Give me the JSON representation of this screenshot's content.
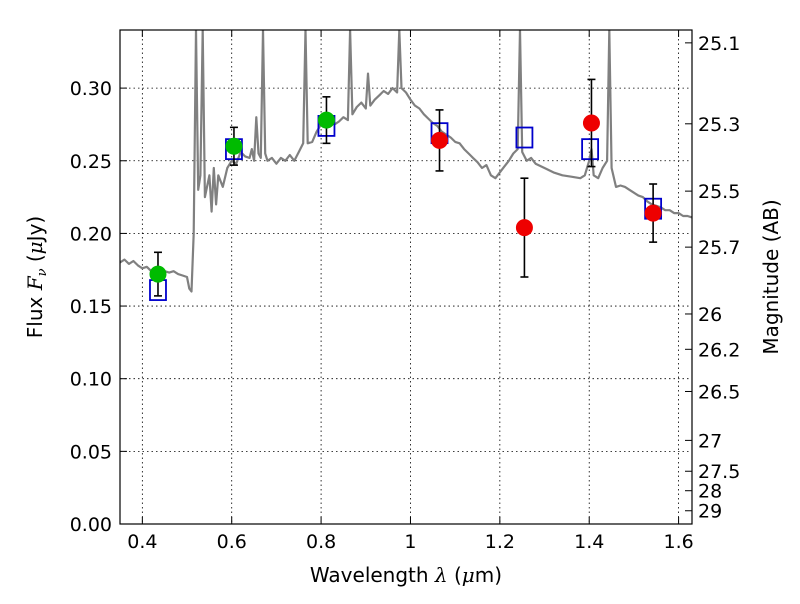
{
  "chart_data": {
    "type": "scatter",
    "xlabel": "Wavelength λ (μm)",
    "ylabel": "Flux F_ν (μJy)",
    "y2label": "Magnitude (AB)",
    "xlim": [
      0.35,
      1.63
    ],
    "ylim": [
      0.0,
      0.34
    ],
    "grid": true,
    "x_ticks": [
      "0.4",
      "0.6",
      "0.8",
      "1",
      "1.2",
      "1.4",
      "1.6"
    ],
    "x_tick_values": [
      0.4,
      0.6,
      0.8,
      1.0,
      1.2,
      1.4,
      1.6
    ],
    "y_ticks": [
      "0.00",
      "0.05",
      "0.10",
      "0.15",
      "0.20",
      "0.25",
      "0.30"
    ],
    "y_tick_values": [
      0.0,
      0.05,
      0.1,
      0.15,
      0.2,
      0.25,
      0.3
    ],
    "mag_ticks": [
      "25.1",
      "25.3",
      "25.5",
      "25.7",
      "26",
      "26.2",
      "26.5",
      "27",
      "27.5",
      "28",
      "29"
    ],
    "mag_tick_values": [
      25.1,
      25.3,
      25.5,
      25.7,
      26.0,
      26.2,
      26.5,
      27.0,
      27.5,
      28.0,
      29.0
    ],
    "series": [
      {
        "marker": "circle",
        "color": "#00bb00",
        "points": [
          {
            "x": 0.435,
            "y": 0.172,
            "err": 0.015
          },
          {
            "x": 0.605,
            "y": 0.26,
            "err": 0.013
          },
          {
            "x": 0.812,
            "y": 0.278,
            "err": 0.016
          }
        ]
      },
      {
        "marker": "circle",
        "color": "#ee0000",
        "points": [
          {
            "x": 1.065,
            "y": 0.264,
            "err": 0.021
          },
          {
            "x": 1.255,
            "y": 0.204,
            "err": 0.034
          },
          {
            "x": 1.405,
            "y": 0.276,
            "err": 0.03
          },
          {
            "x": 1.543,
            "y": 0.214,
            "err": 0.02
          }
        ]
      },
      {
        "marker": "square",
        "color": "#0000cc",
        "points": [
          {
            "x": 0.435,
            "y": 0.161
          },
          {
            "x": 0.605,
            "y": 0.258
          },
          {
            "x": 0.812,
            "y": 0.274
          },
          {
            "x": 1.065,
            "y": 0.269
          },
          {
            "x": 1.255,
            "y": 0.266
          },
          {
            "x": 1.402,
            "y": 0.258
          },
          {
            "x": 1.543,
            "y": 0.217
          }
        ]
      },
      {
        "type": "line",
        "color": "#808080",
        "points": [
          [
            0.35,
            0.18
          ],
          [
            0.36,
            0.182
          ],
          [
            0.37,
            0.179
          ],
          [
            0.38,
            0.181
          ],
          [
            0.39,
            0.178
          ],
          [
            0.4,
            0.176
          ],
          [
            0.41,
            0.177
          ],
          [
            0.42,
            0.174
          ],
          [
            0.43,
            0.176
          ],
          [
            0.44,
            0.175
          ],
          [
            0.45,
            0.174
          ],
          [
            0.46,
            0.173
          ],
          [
            0.47,
            0.174
          ],
          [
            0.48,
            0.172
          ],
          [
            0.49,
            0.171
          ],
          [
            0.5,
            0.17
          ],
          [
            0.505,
            0.162
          ],
          [
            0.51,
            0.16
          ],
          [
            0.515,
            0.2
          ],
          [
            0.52,
            0.34
          ],
          [
            0.525,
            0.23
          ],
          [
            0.53,
            0.24
          ],
          [
            0.535,
            0.34
          ],
          [
            0.54,
            0.225
          ],
          [
            0.55,
            0.24
          ],
          [
            0.555,
            0.215
          ],
          [
            0.56,
            0.245
          ],
          [
            0.565,
            0.22
          ],
          [
            0.57,
            0.24
          ],
          [
            0.58,
            0.232
          ],
          [
            0.59,
            0.245
          ],
          [
            0.6,
            0.25
          ],
          [
            0.61,
            0.248
          ],
          [
            0.62,
            0.256
          ],
          [
            0.63,
            0.253
          ],
          [
            0.64,
            0.252
          ],
          [
            0.645,
            0.258
          ],
          [
            0.65,
            0.25
          ],
          [
            0.655,
            0.28
          ],
          [
            0.66,
            0.255
          ],
          [
            0.665,
            0.252
          ],
          [
            0.67,
            0.34
          ],
          [
            0.675,
            0.255
          ],
          [
            0.68,
            0.25
          ],
          [
            0.69,
            0.252
          ],
          [
            0.7,
            0.248
          ],
          [
            0.71,
            0.252
          ],
          [
            0.72,
            0.25
          ],
          [
            0.73,
            0.254
          ],
          [
            0.74,
            0.25
          ],
          [
            0.75,
            0.256
          ],
          [
            0.76,
            0.262
          ],
          [
            0.765,
            0.34
          ],
          [
            0.77,
            0.262
          ],
          [
            0.78,
            0.263
          ],
          [
            0.79,
            0.27
          ],
          [
            0.8,
            0.275
          ],
          [
            0.81,
            0.276
          ],
          [
            0.82,
            0.279
          ],
          [
            0.83,
            0.275
          ],
          [
            0.84,
            0.277
          ],
          [
            0.85,
            0.28
          ],
          [
            0.86,
            0.278
          ],
          [
            0.865,
            0.34
          ],
          [
            0.87,
            0.282
          ],
          [
            0.88,
            0.287
          ],
          [
            0.89,
            0.29
          ],
          [
            0.9,
            0.286
          ],
          [
            0.905,
            0.31
          ],
          [
            0.91,
            0.288
          ],
          [
            0.92,
            0.292
          ],
          [
            0.93,
            0.295
          ],
          [
            0.94,
            0.298
          ],
          [
            0.95,
            0.296
          ],
          [
            0.96,
            0.3
          ],
          [
            0.97,
            0.297
          ],
          [
            0.975,
            0.34
          ],
          [
            0.98,
            0.3
          ],
          [
            0.99,
            0.297
          ],
          [
            1.0,
            0.292
          ],
          [
            1.01,
            0.288
          ],
          [
            1.02,
            0.286
          ],
          [
            1.03,
            0.282
          ],
          [
            1.04,
            0.279
          ],
          [
            1.05,
            0.276
          ],
          [
            1.06,
            0.274
          ],
          [
            1.07,
            0.27
          ],
          [
            1.08,
            0.268
          ],
          [
            1.09,
            0.266
          ],
          [
            1.1,
            0.263
          ],
          [
            1.11,
            0.262
          ],
          [
            1.12,
            0.258
          ],
          [
            1.13,
            0.255
          ],
          [
            1.14,
            0.252
          ],
          [
            1.15,
            0.249
          ],
          [
            1.16,
            0.245
          ],
          [
            1.17,
            0.247
          ],
          [
            1.18,
            0.24
          ],
          [
            1.19,
            0.238
          ],
          [
            1.2,
            0.242
          ],
          [
            1.21,
            0.246
          ],
          [
            1.22,
            0.25
          ],
          [
            1.23,
            0.255
          ],
          [
            1.24,
            0.258
          ],
          [
            1.245,
            0.34
          ],
          [
            1.25,
            0.256
          ],
          [
            1.26,
            0.25
          ],
          [
            1.27,
            0.252
          ],
          [
            1.28,
            0.248
          ],
          [
            1.3,
            0.245
          ],
          [
            1.32,
            0.242
          ],
          [
            1.34,
            0.24
          ],
          [
            1.36,
            0.239
          ],
          [
            1.38,
            0.238
          ],
          [
            1.39,
            0.24
          ],
          [
            1.395,
            0.245
          ],
          [
            1.4,
            0.25
          ],
          [
            1.405,
            0.258
          ],
          [
            1.41,
            0.24
          ],
          [
            1.42,
            0.238
          ],
          [
            1.43,
            0.245
          ],
          [
            1.44,
            0.25
          ],
          [
            1.445,
            0.34
          ],
          [
            1.45,
            0.245
          ],
          [
            1.46,
            0.232
          ],
          [
            1.47,
            0.233
          ],
          [
            1.48,
            0.232
          ],
          [
            1.49,
            0.23
          ],
          [
            1.5,
            0.228
          ],
          [
            1.51,
            0.226
          ],
          [
            1.52,
            0.225
          ],
          [
            1.53,
            0.222
          ],
          [
            1.54,
            0.22
          ],
          [
            1.55,
            0.219
          ],
          [
            1.56,
            0.218
          ],
          [
            1.57,
            0.216
          ],
          [
            1.58,
            0.216
          ],
          [
            1.59,
            0.214
          ],
          [
            1.6,
            0.214
          ],
          [
            1.61,
            0.212
          ],
          [
            1.62,
            0.212
          ],
          [
            1.63,
            0.211
          ]
        ]
      }
    ]
  }
}
